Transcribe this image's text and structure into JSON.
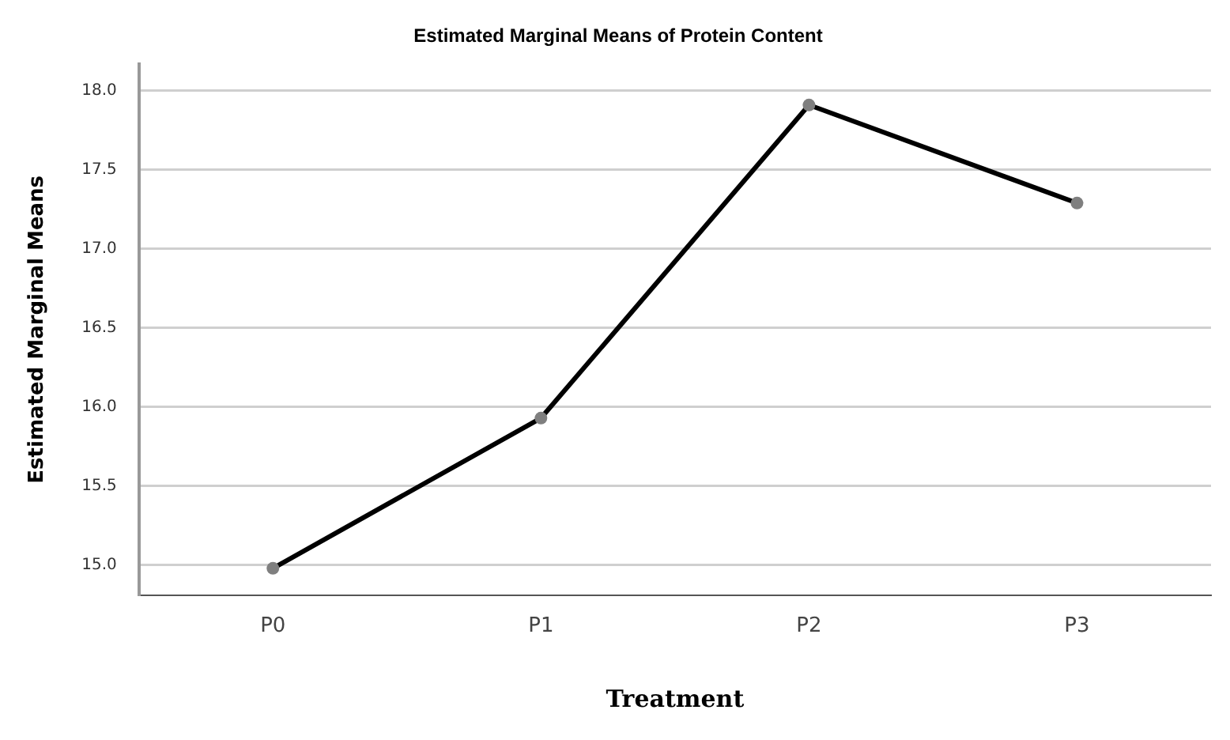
{
  "chart_data": {
    "type": "line",
    "title": "Estimated Marginal Means of Protein Content",
    "xlabel": "Treatment",
    "ylabel": "Estimated Marginal Means",
    "categories": [
      "P0",
      "P1",
      "P2",
      "P3"
    ],
    "series": [
      {
        "color": "#000000",
        "values": [
          14.98,
          15.93,
          17.91,
          17.29
        ]
      }
    ],
    "ylim": [
      14.81,
      18.17
    ],
    "yticks": [
      {
        "value": 15,
        "label": "15.0"
      },
      15.5,
      {
        "value": 16,
        "label": "16.0"
      },
      16.5,
      {
        "value": 17,
        "label": "17.0"
      },
      17.5,
      {
        "value": 18,
        "label": "18.0"
      }
    ],
    "grid": "y",
    "legend": false,
    "marker": "circle",
    "line_style": "solid"
  }
}
